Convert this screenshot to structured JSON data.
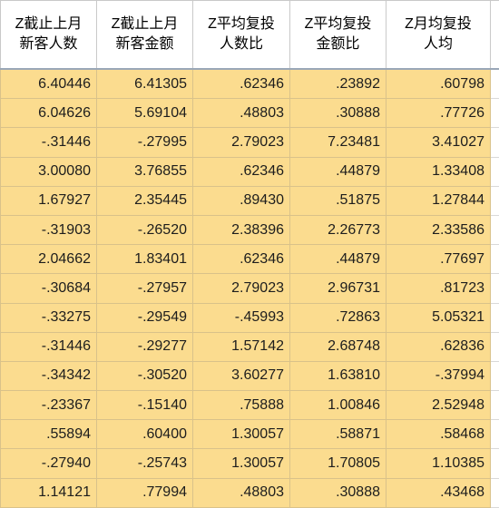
{
  "table": {
    "headers": [
      {
        "line1": "Z截止上月",
        "line2": "新客人数"
      },
      {
        "line1": "Z截止上月",
        "line2": "新客金额"
      },
      {
        "line1": "Z平均复投",
        "line2": "人数比"
      },
      {
        "line1": "Z平均复投",
        "line2": "金额比"
      },
      {
        "line1": "Z月均复投",
        "line2": "人均"
      }
    ],
    "rows": [
      [
        "6.40446",
        "6.41305",
        ".62346",
        ".23892",
        ".60798"
      ],
      [
        "6.04626",
        "5.69104",
        ".48803",
        ".30888",
        ".77726"
      ],
      [
        "-.31446",
        "-.27995",
        "2.79023",
        "7.23481",
        "3.41027"
      ],
      [
        "3.00080",
        "3.76855",
        ".62346",
        ".44879",
        "1.33408"
      ],
      [
        "1.67927",
        "2.35445",
        ".89430",
        ".51875",
        "1.27844"
      ],
      [
        "-.31903",
        "-.26520",
        "2.38396",
        "2.26773",
        "2.33586"
      ],
      [
        "2.04662",
        "1.83401",
        ".62346",
        ".44879",
        ".77697"
      ],
      [
        "-.30684",
        "-.27957",
        "2.79023",
        "2.96731",
        ".81723"
      ],
      [
        "-.33275",
        "-.29549",
        "-.45993",
        ".72863",
        "5.05321"
      ],
      [
        "-.31446",
        "-.29277",
        "1.57142",
        "2.68748",
        ".62836"
      ],
      [
        "-.34342",
        "-.30520",
        "3.60277",
        "1.63810",
        "-.37994"
      ],
      [
        "-.23367",
        "-.15140",
        ".75888",
        "1.00846",
        "2.52948"
      ],
      [
        ".55894",
        ".60400",
        "1.30057",
        ".58871",
        ".58468"
      ],
      [
        "-.27940",
        "-.25743",
        "1.30057",
        "1.70805",
        "1.10385"
      ],
      [
        "1.14121",
        ".77994",
        ".48803",
        ".30888",
        ".43468"
      ]
    ]
  },
  "colors": {
    "cell_fill": "#fbdc8f",
    "header_fill": "#ffffff",
    "gridline": "#c9c9c9"
  }
}
